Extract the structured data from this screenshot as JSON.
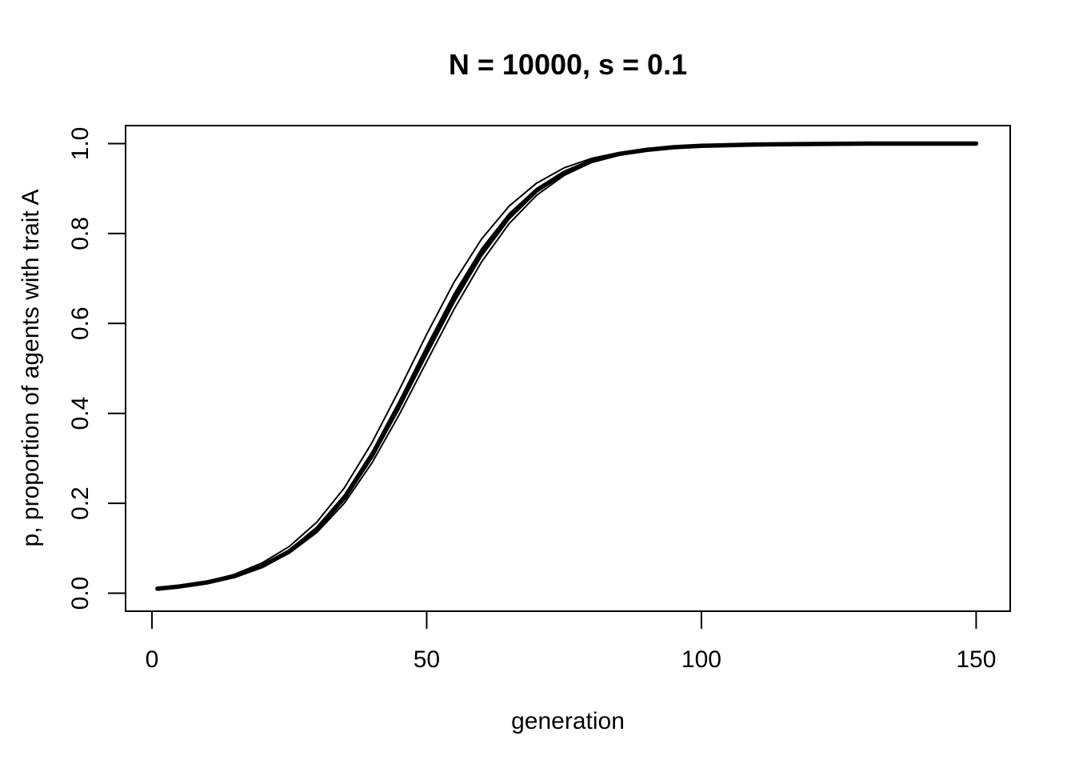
{
  "chart_data": {
    "type": "line",
    "title": "N = 10000, s = 0.1",
    "xlabel": "generation",
    "ylabel": "p, proportion of agents with trait A",
    "xlim": [
      -4.8,
      156.2
    ],
    "ylim": [
      -0.04,
      1.04
    ],
    "x_ticks": [
      0,
      50,
      100,
      150
    ],
    "y_ticks": [
      0.0,
      0.2,
      0.4,
      0.6,
      0.8,
      1.0
    ],
    "x_tick_labels": [
      "0",
      "50",
      "100",
      "150"
    ],
    "y_tick_labels": [
      "0.0",
      "0.2",
      "0.4",
      "0.6",
      "0.8",
      "1.0"
    ],
    "grid": false,
    "legend": "none",
    "line_color": "#000000",
    "series": [
      {
        "style": "simulation",
        "x": [
          1,
          5,
          10,
          15,
          20,
          25,
          30,
          35,
          40,
          45,
          50,
          55,
          60,
          65,
          70,
          75,
          80,
          85,
          90,
          95,
          100,
          110,
          120,
          130,
          140,
          150
        ],
        "y": [
          0.01,
          0.015,
          0.024,
          0.038,
          0.06,
          0.092,
          0.14,
          0.208,
          0.3,
          0.41,
          0.53,
          0.647,
          0.75,
          0.832,
          0.892,
          0.933,
          0.96,
          0.976,
          0.986,
          0.992,
          0.995,
          0.998,
          0.999,
          1.0,
          1.0,
          1.0
        ]
      },
      {
        "style": "simulation",
        "x": [
          1,
          5,
          10,
          15,
          20,
          25,
          30,
          35,
          40,
          45,
          50,
          55,
          60,
          65,
          70,
          75,
          80,
          85,
          90,
          95,
          100,
          110,
          120,
          130,
          140,
          150
        ],
        "y": [
          0.01,
          0.016,
          0.026,
          0.042,
          0.067,
          0.104,
          0.158,
          0.234,
          0.334,
          0.452,
          0.576,
          0.692,
          0.788,
          0.861,
          0.912,
          0.946,
          0.967,
          0.98,
          0.988,
          0.993,
          0.996,
          0.998,
          0.999,
          1.0,
          1.0,
          1.0
        ]
      },
      {
        "style": "simulation",
        "x": [
          1,
          5,
          10,
          15,
          20,
          25,
          30,
          35,
          40,
          45,
          50,
          55,
          60,
          65,
          70,
          75,
          80,
          85,
          90,
          95,
          100,
          110,
          120,
          130,
          140,
          150
        ],
        "y": [
          0.01,
          0.015,
          0.025,
          0.039,
          0.062,
          0.096,
          0.147,
          0.218,
          0.313,
          0.427,
          0.549,
          0.666,
          0.766,
          0.844,
          0.9,
          0.938,
          0.963,
          0.978,
          0.987,
          0.992,
          0.995,
          0.998,
          0.999,
          1.0,
          1.0,
          1.0
        ]
      },
      {
        "style": "simulation",
        "x": [
          1,
          5,
          10,
          15,
          20,
          25,
          30,
          35,
          40,
          45,
          50,
          55,
          60,
          65,
          70,
          75,
          80,
          85,
          90,
          95,
          100,
          110,
          120,
          130,
          140,
          150
        ],
        "y": [
          0.01,
          0.015,
          0.024,
          0.037,
          0.058,
          0.089,
          0.135,
          0.2,
          0.289,
          0.397,
          0.515,
          0.632,
          0.737,
          0.822,
          0.885,
          0.929,
          0.958,
          0.975,
          0.985,
          0.991,
          0.995,
          0.998,
          0.999,
          1.0,
          1.0,
          1.0
        ]
      },
      {
        "style": "expected",
        "x": [
          1,
          5,
          10,
          15,
          20,
          25,
          30,
          35,
          40,
          45,
          50,
          55,
          60,
          65,
          70,
          75,
          80,
          85,
          90,
          95,
          100,
          110,
          120,
          130,
          140,
          150
        ],
        "y": [
          0.01,
          0.015,
          0.024,
          0.038,
          0.06,
          0.093,
          0.142,
          0.212,
          0.305,
          0.418,
          0.54,
          0.657,
          0.758,
          0.838,
          0.896,
          0.935,
          0.961,
          0.977,
          0.986,
          0.992,
          0.995,
          0.998,
          0.999,
          1.0,
          1.0,
          1.0
        ]
      }
    ]
  }
}
